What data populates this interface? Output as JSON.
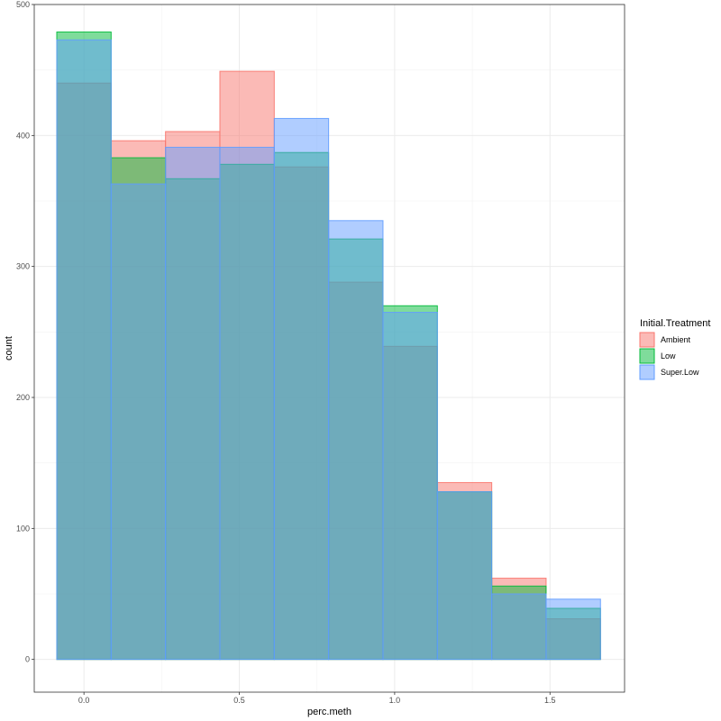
{
  "chart_data": {
    "type": "bar",
    "subtype": "overlaid-histogram",
    "xlabel": "perc.meth",
    "ylabel": "count",
    "xlim": [
      -0.16,
      1.74
    ],
    "ylim": [
      -25,
      500
    ],
    "x_ticks": [
      0.0,
      0.5,
      1.0,
      1.5
    ],
    "x_tick_labels": [
      "0.0",
      "0.5",
      "1.0",
      "1.5"
    ],
    "y_ticks": [
      0,
      100,
      200,
      300,
      400,
      500
    ],
    "y_tick_labels": [
      "0",
      "100",
      "200",
      "300",
      "400",
      "500"
    ],
    "grid": true,
    "bin_edges": [
      -0.0875,
      0.0875,
      0.2625,
      0.4375,
      0.6125,
      0.7875,
      0.9625,
      1.1375,
      1.3125,
      1.4875,
      1.6625
    ],
    "series": [
      {
        "name": "Ambient",
        "fill": "#F8766D",
        "values": [
          440,
          396,
          403,
          449,
          376,
          288,
          239,
          135,
          62,
          31
        ]
      },
      {
        "name": "Low",
        "fill": "#00BA38",
        "values": [
          479,
          383,
          367,
          378,
          387,
          321,
          270,
          128,
          56,
          39
        ]
      },
      {
        "name": "Super.Low",
        "fill": "#619CFF",
        "values": [
          473,
          363,
          391,
          391,
          413,
          335,
          265,
          128,
          50,
          46
        ]
      }
    ],
    "legend": {
      "title": "Initial.Treatment",
      "position": "right"
    }
  }
}
